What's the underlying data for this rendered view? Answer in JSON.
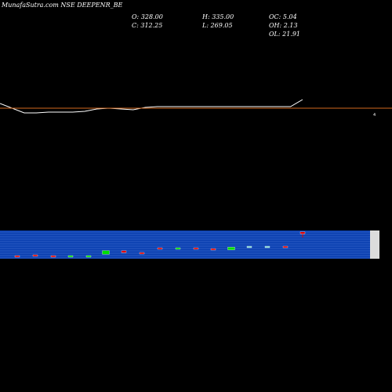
{
  "header": {
    "title": "MunafaSutra.com NSE DEEPENR_BE",
    "open": "O: 328.00",
    "close": "C: 312.25",
    "high": "H: 335.00",
    "low": "L: 269.05",
    "oc": "OC: 5.04",
    "oh": "OH: 2.13",
    "ol": "OL: 21.91"
  },
  "chart_data": {
    "type": "line",
    "price_axis_label": "4",
    "line": [
      108,
      102,
      96,
      96,
      97,
      97,
      97,
      98,
      101,
      102,
      101,
      100,
      103,
      104,
      104,
      104,
      104,
      104,
      104,
      104,
      104,
      104,
      104,
      104,
      104,
      113
    ],
    "candles": [
      {
        "dir": "down",
        "size": 0.5
      },
      {
        "dir": "down",
        "size": 0.6
      },
      {
        "dir": "down",
        "size": 0.5
      },
      {
        "dir": "up",
        "size": 0.3
      },
      {
        "dir": "up",
        "size": 0.3
      },
      {
        "dir": "up",
        "size": 1.6
      },
      {
        "dir": "down",
        "size": 0.9
      },
      {
        "dir": "down",
        "size": 0.5
      },
      {
        "dir": "down",
        "size": 0.6
      },
      {
        "dir": "up",
        "size": 0.5
      },
      {
        "dir": "down",
        "size": 0.5
      },
      {
        "dir": "down",
        "size": 0.6
      },
      {
        "dir": "up",
        "size": 1.2
      },
      {
        "dir": "up",
        "size": 0.3
      },
      {
        "dir": "up",
        "size": 0.3
      },
      {
        "dir": "down",
        "size": 0.3
      },
      {
        "dir": "down",
        "size": 0.8
      }
    ],
    "colors": {
      "band": "#0a3fb0",
      "band_line": "#4f7fd8",
      "price_line": "#d2691e",
      "up": "#00e000",
      "down": "#e00000",
      "neutral": "#7fd3d3"
    }
  }
}
